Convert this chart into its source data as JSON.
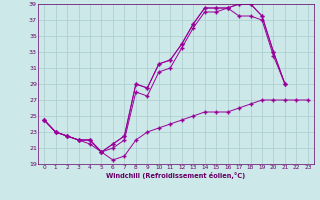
{
  "xlabel": "Windchill (Refroidissement éolien,°C)",
  "bg_color": "#cce8e8",
  "line_color": "#990099",
  "grid_color": "#aacccc",
  "axis_color": "#660066",
  "xlim": [
    -0.5,
    23.5
  ],
  "ylim": [
    19,
    39
  ],
  "xticks": [
    0,
    1,
    2,
    3,
    4,
    5,
    6,
    7,
    8,
    9,
    10,
    11,
    12,
    13,
    14,
    15,
    16,
    17,
    18,
    19,
    20,
    21,
    22,
    23
  ],
  "yticks": [
    19,
    21,
    23,
    25,
    27,
    29,
    31,
    33,
    35,
    37,
    39
  ],
  "series": [
    {
      "x": [
        0,
        1,
        2,
        3,
        4,
        5,
        6,
        7,
        8,
        9,
        10,
        11,
        12,
        13,
        14,
        15,
        16,
        17,
        18,
        19,
        20,
        21
      ],
      "y": [
        24.5,
        23.0,
        22.5,
        22.0,
        22.0,
        20.5,
        21.5,
        22.5,
        29.0,
        28.5,
        31.5,
        32.0,
        34.0,
        36.5,
        38.5,
        38.5,
        38.5,
        39.0,
        39.0,
        37.5,
        33.0,
        29.0
      ]
    },
    {
      "x": [
        0,
        1,
        2,
        3,
        4,
        5,
        6,
        7,
        8,
        9,
        10,
        11,
        12,
        13,
        14,
        15,
        16,
        17,
        18,
        19,
        20,
        21
      ],
      "y": [
        24.5,
        23.0,
        22.5,
        22.0,
        22.0,
        20.5,
        21.5,
        22.5,
        29.0,
        28.5,
        31.5,
        32.0,
        34.0,
        36.5,
        38.5,
        38.5,
        38.5,
        39.0,
        39.0,
        37.5,
        33.0,
        29.0
      ]
    },
    {
      "x": [
        0,
        1,
        2,
        3,
        4,
        5,
        6,
        7,
        8,
        9,
        10,
        11,
        12,
        13,
        14,
        15,
        16,
        17,
        18,
        19,
        20,
        21
      ],
      "y": [
        24.5,
        23.0,
        22.5,
        22.0,
        22.0,
        20.5,
        21.0,
        22.0,
        28.0,
        27.5,
        30.5,
        31.0,
        33.5,
        36.0,
        38.0,
        38.0,
        38.5,
        37.5,
        37.5,
        37.0,
        32.5,
        29.0
      ]
    },
    {
      "x": [
        0,
        1,
        2,
        3,
        4,
        5,
        6,
        7,
        8,
        9,
        10,
        11,
        12,
        13,
        14,
        15,
        16,
        17,
        18,
        19,
        20,
        21,
        22,
        23
      ],
      "y": [
        24.5,
        23.0,
        22.5,
        22.0,
        21.5,
        20.5,
        19.5,
        20.0,
        22.0,
        23.0,
        23.5,
        24.0,
        24.5,
        25.0,
        25.5,
        25.5,
        25.5,
        26.0,
        26.5,
        27.0,
        27.0,
        27.0,
        27.0,
        27.0
      ]
    }
  ]
}
